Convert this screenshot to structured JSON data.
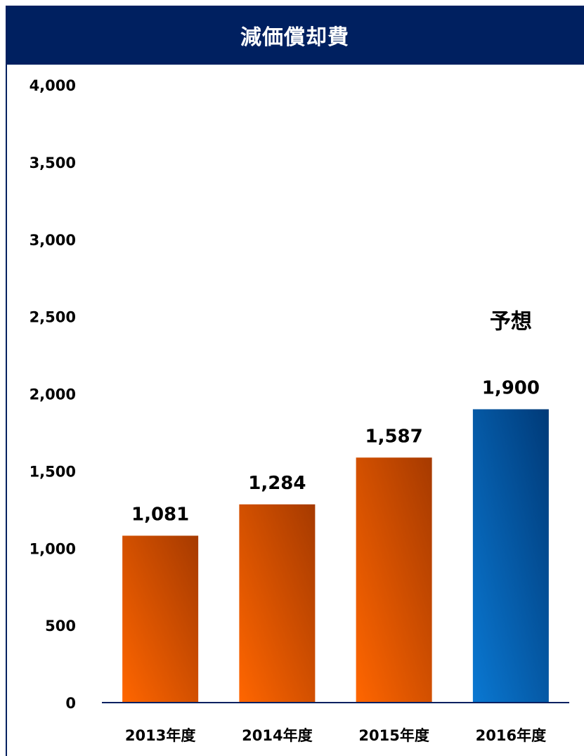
{
  "header": {
    "title": "減価償却費"
  },
  "chart_data": {
    "type": "bar",
    "categories": [
      "2013年度",
      "2014年度",
      "2015年度",
      "2016年度"
    ],
    "values": [
      1081,
      1284,
      1587,
      1900
    ],
    "value_labels": [
      "1,081",
      "1,284",
      "1,587",
      "1,900"
    ],
    "ylim": [
      0,
      4000
    ],
    "yticks": [
      0,
      500,
      1000,
      1500,
      2000,
      2500,
      3000,
      3500,
      4000
    ],
    "ytick_labels": [
      "0",
      "500",
      "1,000",
      "1,500",
      "2,000",
      "2,500",
      "3,000",
      "3,500",
      "4,000"
    ],
    "grid": false,
    "legend": "none",
    "annotations": [
      {
        "category": "2016年度",
        "text": "予想"
      }
    ],
    "colors": {
      "actual_light": "#ff6600",
      "actual_dark": "#a63a00",
      "forecast_light": "#0a78d2",
      "forecast_dark": "#003a78",
      "axis": "#002060",
      "header_bg": "#002060"
    }
  }
}
